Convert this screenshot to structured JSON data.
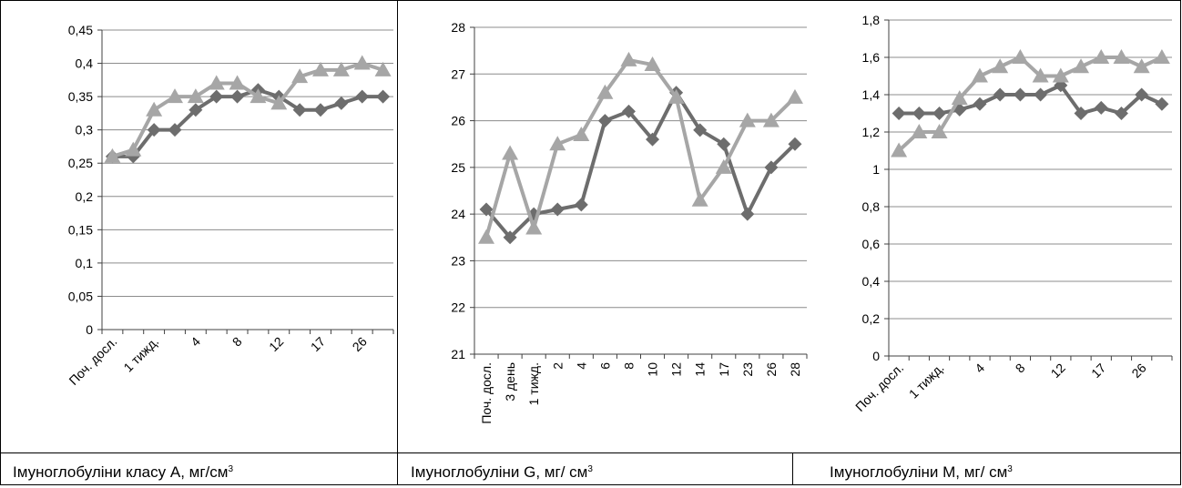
{
  "colors": {
    "dark_series": "#6d6d6d",
    "light_series": "#a6a6a6",
    "grid": "#8c8c8c"
  },
  "captions": [
    {
      "text": "Імуноглобуліни класу А, мг/см",
      "sup": "3"
    },
    {
      "text": "Імуноглобуліни G, мг/ см",
      "sup": "3"
    },
    {
      "text": "Імуноглобуліни М, мг/ см",
      "sup": "3"
    }
  ],
  "chart_data": [
    {
      "type": "line",
      "title": "",
      "x": [
        "Поч. досл.",
        "",
        "1 тижд.",
        "",
        "4",
        "",
        "8",
        "",
        "12",
        "",
        "17",
        "",
        "26",
        ""
      ],
      "x_tick_labels_shown": [
        "Поч. досл.",
        "1 тижд.",
        "4",
        "8",
        "12",
        "17",
        "26"
      ],
      "ylim": [
        0,
        0.45
      ],
      "yticks": [
        "0",
        "0,05",
        "0,1",
        "0,15",
        "0,2",
        "0,25",
        "0,3",
        "0,35",
        "0,4",
        "0,45"
      ],
      "grid": true,
      "series": [
        {
          "marker": "diamond",
          "color": "dark",
          "values": [
            0.26,
            0.26,
            0.3,
            0.3,
            0.33,
            0.35,
            0.35,
            0.36,
            0.35,
            0.33,
            0.33,
            0.34,
            0.35,
            0.35
          ]
        },
        {
          "marker": "triangle",
          "color": "light",
          "values": [
            0.26,
            0.27,
            0.33,
            0.35,
            0.35,
            0.37,
            0.37,
            0.35,
            0.34,
            0.38,
            0.39,
            0.39,
            0.4,
            0.39
          ]
        }
      ]
    },
    {
      "type": "line",
      "title": "",
      "x": [
        "Поч. досл.",
        "3 день",
        "1 тижд.",
        "2",
        "4",
        "6",
        "8",
        "10",
        "12",
        "14",
        "17",
        "23",
        "26",
        "28"
      ],
      "x_tick_labels_shown": [
        "Поч. досл.",
        "3 день",
        "1 тижд.",
        "2",
        "4",
        "6",
        "8",
        "10",
        "12",
        "14",
        "17",
        "23",
        "26",
        "28"
      ],
      "ylim": [
        21,
        28
      ],
      "yticks": [
        "21",
        "22",
        "23",
        "24",
        "25",
        "26",
        "27",
        "28"
      ],
      "grid": true,
      "series": [
        {
          "marker": "diamond",
          "color": "dark",
          "values": [
            24.1,
            23.5,
            24.0,
            24.1,
            24.2,
            26.0,
            26.2,
            25.6,
            26.6,
            25.8,
            25.5,
            24.0,
            25.0,
            25.5
          ]
        },
        {
          "marker": "triangle",
          "color": "light",
          "values": [
            23.5,
            25.3,
            23.7,
            25.5,
            25.7,
            26.6,
            27.3,
            27.2,
            26.5,
            24.3,
            25.0,
            26.0,
            26.0,
            26.5
          ]
        }
      ]
    },
    {
      "type": "line",
      "title": "",
      "x": [
        "Поч. досл.",
        "",
        "1 тижд.",
        "",
        "4",
        "",
        "8",
        "",
        "12",
        "",
        "17",
        "",
        "26",
        ""
      ],
      "x_tick_labels_shown": [
        "Поч. досл.",
        "1 тижд.",
        "4",
        "8",
        "12",
        "17",
        "26"
      ],
      "ylim": [
        0,
        1.8
      ],
      "yticks": [
        "0",
        "0,2",
        "0,4",
        "0,6",
        "0,8",
        "1",
        "1,2",
        "1,4",
        "1,6",
        "1,8"
      ],
      "grid": true,
      "series": [
        {
          "marker": "diamond",
          "color": "dark",
          "values": [
            1.3,
            1.3,
            1.3,
            1.32,
            1.35,
            1.4,
            1.4,
            1.4,
            1.45,
            1.3,
            1.33,
            1.3,
            1.4,
            1.35
          ]
        },
        {
          "marker": "triangle",
          "color": "light",
          "values": [
            1.1,
            1.2,
            1.2,
            1.38,
            1.5,
            1.55,
            1.6,
            1.5,
            1.5,
            1.55,
            1.6,
            1.6,
            1.55,
            1.6
          ]
        }
      ]
    }
  ]
}
